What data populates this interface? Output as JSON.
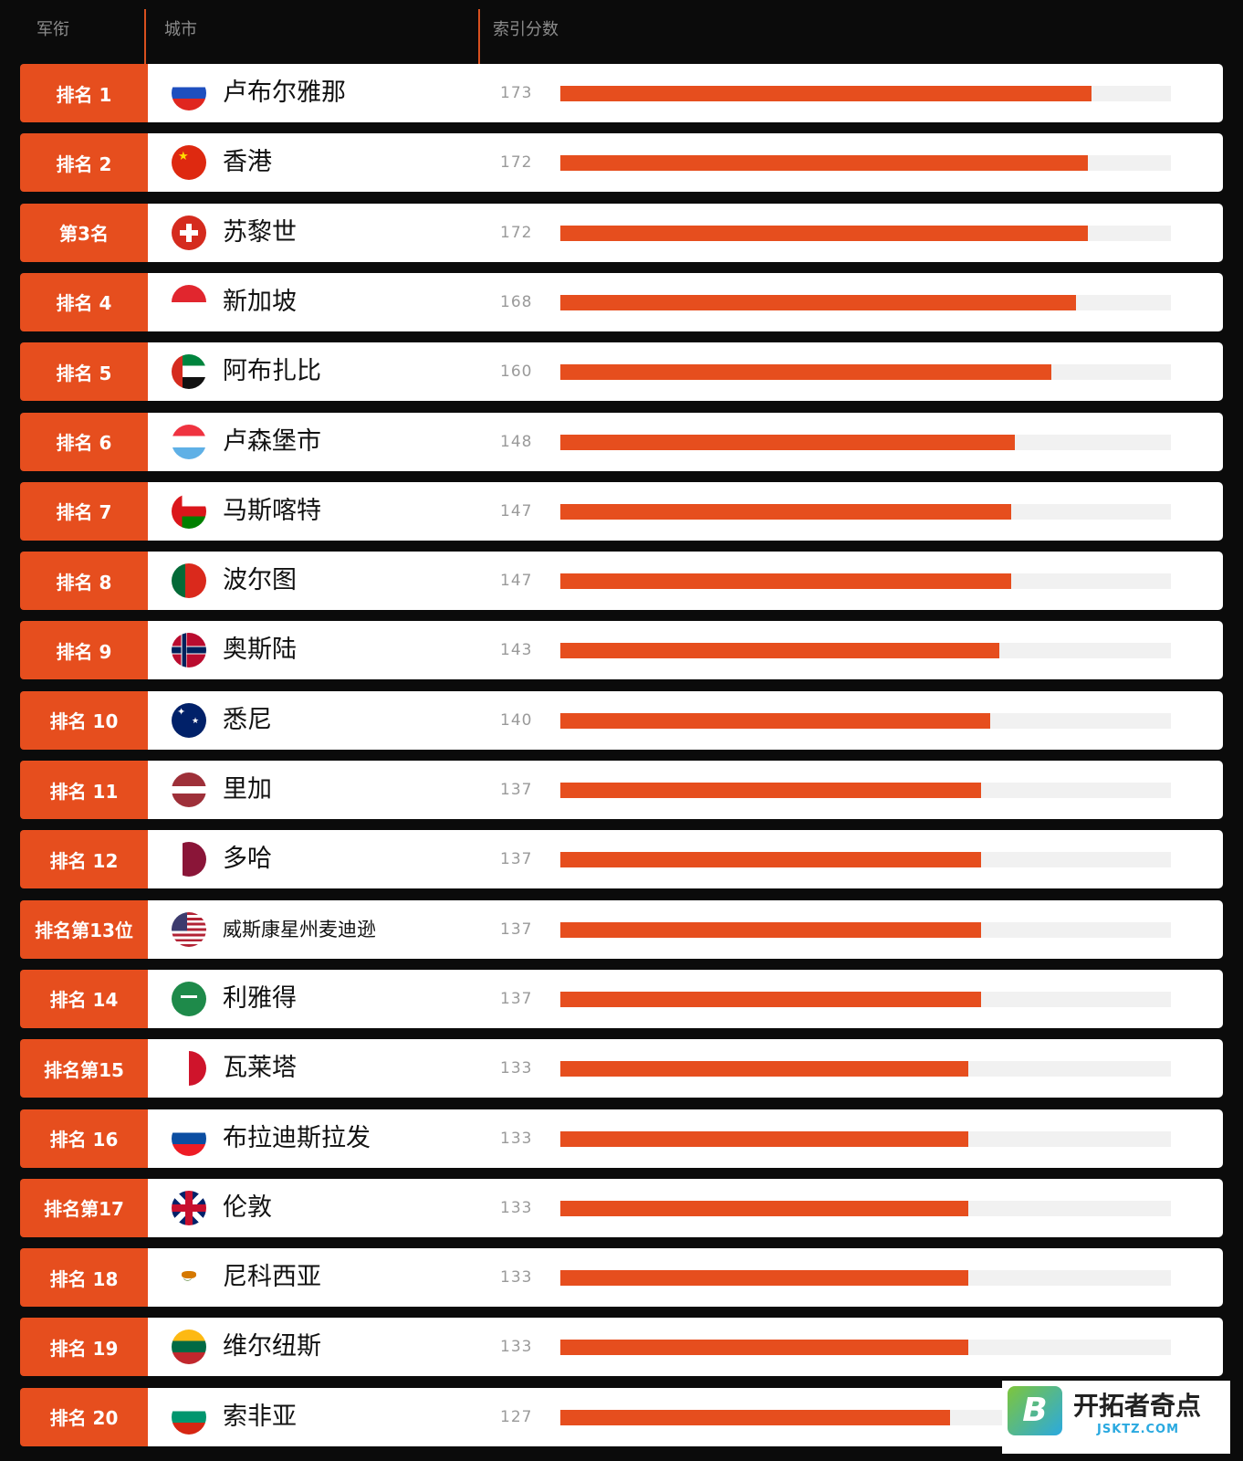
{
  "header": {
    "col_rank": "军衔",
    "col_city": "城市",
    "col_score": "索引分数"
  },
  "colors": {
    "accent": "#e64e1e",
    "track": "#f1f1f1",
    "background": "#0b0b0b"
  },
  "chart_data": {
    "type": "bar",
    "orientation": "horizontal",
    "title": "",
    "xlabel": "索引分数",
    "ylabel": "城市",
    "xlim": [
      0,
      199
    ],
    "rank_labels": [
      "排名 1",
      "排名 2",
      "第3名",
      "排名 4",
      "排名 5",
      "排名 6",
      "排名 7",
      "排名 8",
      "排名 9",
      "排名 10",
      "排名 11",
      "排名 12",
      "排名第13位",
      "排名 14",
      "排名第15",
      "排名 16",
      "排名第17",
      "排名 18",
      "排名 19",
      "排名 20"
    ],
    "categories": [
      "卢布尔雅那",
      "香港",
      "苏黎世",
      "新加坡",
      "阿布扎比",
      "卢森堡市",
      "马斯喀特",
      "波尔图",
      "奥斯陆",
      "悉尼",
      "里加",
      "多哈",
      "威斯康星州麦迪逊",
      "利雅得",
      "瓦莱塔",
      "布拉迪斯拉发",
      "伦敦",
      "尼科西亚",
      "维尔纽斯",
      "索非亚"
    ],
    "values": [
      173,
      172,
      172,
      168,
      160,
      148,
      147,
      147,
      143,
      140,
      137,
      137,
      137,
      137,
      133,
      133,
      133,
      133,
      133,
      127
    ],
    "flag_icons": [
      "slovenia-flag-icon",
      "china-flag-icon",
      "switzerland-flag-icon",
      "singapore-flag-icon",
      "uae-flag-icon",
      "luxembourg-flag-icon",
      "oman-flag-icon",
      "portugal-flag-icon",
      "norway-flag-icon",
      "australia-flag-icon",
      "latvia-flag-icon",
      "qatar-flag-icon",
      "usa-flag-icon",
      "saudi-arabia-flag-icon",
      "malta-flag-icon",
      "slovakia-flag-icon",
      "uk-flag-icon",
      "cyprus-flag-icon",
      "lithuania-flag-icon",
      "bulgaria-flag-icon"
    ]
  },
  "watermark": {
    "brand": "开拓者奇点",
    "domain": "JSKTZ.COM",
    "badge": "B"
  }
}
